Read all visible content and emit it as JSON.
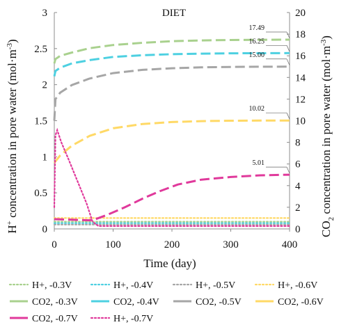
{
  "chart_data": {
    "type": "line",
    "title": "DIET",
    "xlabel": "Time (day)",
    "ylabel_left_prefix": "H",
    "ylabel_left_sup": "+",
    "ylabel_left_rest": " concentration in pore water (mol·m",
    "ylabel_left_exp": "-3",
    "ylabel_left_end": ")",
    "ylabel_right_prefix": "CO",
    "ylabel_right_sub": "2",
    "ylabel_right_rest": " concentration in pore water (mol·m",
    "ylabel_right_exp": "-3",
    "ylabel_right_end": ")",
    "xlim": [
      0,
      400
    ],
    "ylim_left": [
      0,
      3
    ],
    "ylim_right": [
      0,
      20
    ],
    "x_ticks": [
      "0",
      "100",
      "200",
      "300",
      "400"
    ],
    "y_left_ticks": [
      "0",
      "0.5",
      "1",
      "1.5",
      "2",
      "2.5",
      "3"
    ],
    "y_right_ticks": [
      "0",
      "2",
      "4",
      "6",
      "8",
      "10",
      "12",
      "14",
      "16",
      "18",
      "20"
    ],
    "grid": false,
    "legend_position": "bottom",
    "series": [
      {
        "name": "H+, -0.3V",
        "axis": "left",
        "style": "dotted",
        "color": "#a9d18e",
        "points": [
          [
            0,
            0.1
          ],
          [
            20,
            0.1
          ],
          [
            400,
            0.1
          ]
        ]
      },
      {
        "name": "H+, -0.4V",
        "axis": "left",
        "style": "dotted",
        "color": "#4dd0e1",
        "points": [
          [
            0,
            0.08
          ],
          [
            20,
            0.08
          ],
          [
            400,
            0.08
          ]
        ]
      },
      {
        "name": "H+, -0.5V",
        "axis": "left",
        "style": "dotted",
        "color": "#a6a6a6",
        "points": [
          [
            0,
            0.06
          ],
          [
            20,
            0.06
          ],
          [
            400,
            0.06
          ]
        ]
      },
      {
        "name": "H+, -0.6V",
        "axis": "left",
        "style": "dotted",
        "color": "#ffd966",
        "points": [
          [
            0,
            0.15
          ],
          [
            20,
            0.15
          ],
          [
            400,
            0.15
          ]
        ]
      },
      {
        "name": "CO2, -0.3V",
        "axis": "right",
        "style": "dashed",
        "color": "#a9d18e",
        "points": [
          [
            0,
            15.3
          ],
          [
            2,
            15.7
          ],
          [
            10,
            16.0
          ],
          [
            30,
            16.3
          ],
          [
            60,
            16.7
          ],
          [
            100,
            17.0
          ],
          [
            150,
            17.2
          ],
          [
            200,
            17.35
          ],
          [
            250,
            17.42
          ],
          [
            300,
            17.46
          ],
          [
            350,
            17.48
          ],
          [
            400,
            17.49
          ]
        ]
      },
      {
        "name": "CO2, -0.4V",
        "axis": "right",
        "style": "dashed",
        "color": "#4dd0e1",
        "points": [
          [
            0,
            14.1
          ],
          [
            2,
            14.6
          ],
          [
            10,
            14.9
          ],
          [
            30,
            15.3
          ],
          [
            60,
            15.6
          ],
          [
            100,
            15.9
          ],
          [
            150,
            16.05
          ],
          [
            200,
            16.15
          ],
          [
            250,
            16.2
          ],
          [
            300,
            16.23
          ],
          [
            350,
            16.24
          ],
          [
            400,
            16.25
          ]
        ]
      },
      {
        "name": "CO2, -0.5V",
        "axis": "right",
        "style": "dashed",
        "color": "#a6a6a6",
        "points": [
          [
            0,
            10.0
          ],
          [
            2,
            12.0
          ],
          [
            10,
            12.6
          ],
          [
            30,
            13.3
          ],
          [
            60,
            13.9
          ],
          [
            100,
            14.4
          ],
          [
            150,
            14.7
          ],
          [
            200,
            14.85
          ],
          [
            250,
            14.93
          ],
          [
            300,
            14.97
          ],
          [
            350,
            14.99
          ],
          [
            400,
            15.0
          ]
        ]
      },
      {
        "name": "CO2, -0.6V",
        "axis": "right",
        "style": "dashed",
        "color": "#ffd966",
        "points": [
          [
            0,
            6.1
          ],
          [
            10,
            6.8
          ],
          [
            30,
            7.7
          ],
          [
            60,
            8.6
          ],
          [
            100,
            9.3
          ],
          [
            150,
            9.7
          ],
          [
            200,
            9.88
          ],
          [
            250,
            9.96
          ],
          [
            300,
            10.0
          ],
          [
            350,
            10.01
          ],
          [
            400,
            10.02
          ]
        ]
      },
      {
        "name": "CO2, -0.7V",
        "axis": "right",
        "style": "dashed",
        "color": "#e0399b",
        "points": [
          [
            0,
            0.9
          ],
          [
            30,
            0.85
          ],
          [
            60,
            0.8
          ],
          [
            70,
            0.9
          ],
          [
            90,
            1.3
          ],
          [
            120,
            2.0
          ],
          [
            150,
            2.8
          ],
          [
            180,
            3.5
          ],
          [
            210,
            4.1
          ],
          [
            250,
            4.55
          ],
          [
            300,
            4.8
          ],
          [
            350,
            4.95
          ],
          [
            400,
            5.01
          ]
        ]
      },
      {
        "name": "H+, -0.7V",
        "axis": "left",
        "style": "dotted",
        "color": "#e0399b",
        "points": [
          [
            0,
            0.3
          ],
          [
            2,
            1.3
          ],
          [
            5,
            1.37
          ],
          [
            12,
            1.2
          ],
          [
            25,
            0.95
          ],
          [
            40,
            0.65
          ],
          [
            55,
            0.35
          ],
          [
            65,
            0.1
          ],
          [
            75,
            0.04
          ],
          [
            100,
            0.04
          ],
          [
            200,
            0.04
          ],
          [
            300,
            0.04
          ],
          [
            400,
            0.04
          ]
        ]
      }
    ],
    "annotations": [
      {
        "text": "17.49",
        "series": "CO2, -0.3V"
      },
      {
        "text": "16.25",
        "series": "CO2, -0.4V"
      },
      {
        "text": "15.00",
        "series": "CO2, -0.5V"
      },
      {
        "text": "10.02",
        "series": "CO2, -0.6V"
      },
      {
        "text": "5.01",
        "series": "CO2, -0.7V"
      }
    ],
    "legend_order": [
      "H+, -0.3V",
      "H+, -0.4V",
      "H+, -0.5V",
      "H+, -0.6V",
      "CO2, -0.3V",
      "CO2, -0.4V",
      "CO2, -0.5V",
      "CO2, -0.6V",
      "CO2, -0.7V",
      "H+, -0.7V"
    ]
  }
}
